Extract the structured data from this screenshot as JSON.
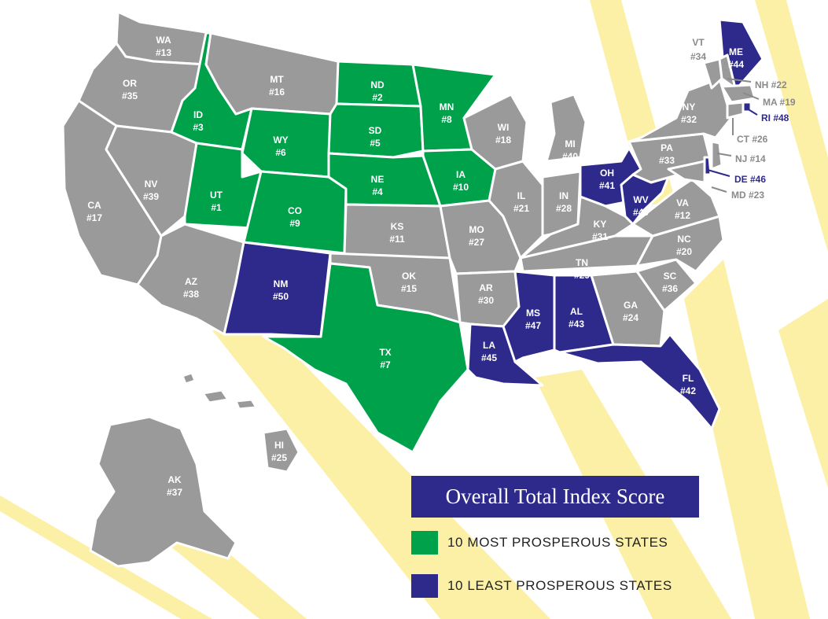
{
  "legend": {
    "title": "Overall Total Index Score",
    "items": [
      {
        "label": "10 MOST PROSPEROUS STATES",
        "color": "#00a14b"
      },
      {
        "label": "10 LEAST PROSPEROUS STATES",
        "color": "#2e2a8c"
      }
    ]
  },
  "colors": {
    "gray": "#9a9a9a",
    "green": "#00a14b",
    "blue": "#2e2a8c",
    "rays": "#fbf0a5"
  },
  "states": [
    {
      "abbr": "WA",
      "rank": "#13",
      "group": "gray"
    },
    {
      "abbr": "OR",
      "rank": "#35",
      "group": "gray"
    },
    {
      "abbr": "CA",
      "rank": "#17",
      "group": "gray"
    },
    {
      "abbr": "NV",
      "rank": "#39",
      "group": "gray"
    },
    {
      "abbr": "ID",
      "rank": "#3",
      "group": "green"
    },
    {
      "abbr": "MT",
      "rank": "#16",
      "group": "gray"
    },
    {
      "abbr": "WY",
      "rank": "#6",
      "group": "green"
    },
    {
      "abbr": "UT",
      "rank": "#1",
      "group": "green"
    },
    {
      "abbr": "CO",
      "rank": "#9",
      "group": "green"
    },
    {
      "abbr": "AZ",
      "rank": "#38",
      "group": "gray"
    },
    {
      "abbr": "NM",
      "rank": "#50",
      "group": "blue"
    },
    {
      "abbr": "ND",
      "rank": "#2",
      "group": "green"
    },
    {
      "abbr": "SD",
      "rank": "#5",
      "group": "green"
    },
    {
      "abbr": "NE",
      "rank": "#4",
      "group": "green"
    },
    {
      "abbr": "KS",
      "rank": "#11",
      "group": "gray"
    },
    {
      "abbr": "OK",
      "rank": "#15",
      "group": "gray"
    },
    {
      "abbr": "TX",
      "rank": "#7",
      "group": "green"
    },
    {
      "abbr": "MN",
      "rank": "#8",
      "group": "green"
    },
    {
      "abbr": "IA",
      "rank": "#10",
      "group": "green"
    },
    {
      "abbr": "MO",
      "rank": "#27",
      "group": "gray"
    },
    {
      "abbr": "AR",
      "rank": "#30",
      "group": "gray"
    },
    {
      "abbr": "LA",
      "rank": "#45",
      "group": "blue"
    },
    {
      "abbr": "WI",
      "rank": "#18",
      "group": "gray"
    },
    {
      "abbr": "IL",
      "rank": "#21",
      "group": "gray"
    },
    {
      "abbr": "MI",
      "rank": "#40",
      "group": "gray"
    },
    {
      "abbr": "IN",
      "rank": "#28",
      "group": "gray"
    },
    {
      "abbr": "OH",
      "rank": "#41",
      "group": "blue"
    },
    {
      "abbr": "KY",
      "rank": "#31",
      "group": "gray"
    },
    {
      "abbr": "TN",
      "rank": "#29",
      "group": "gray"
    },
    {
      "abbr": "MS",
      "rank": "#47",
      "group": "blue"
    },
    {
      "abbr": "AL",
      "rank": "#43",
      "group": "blue"
    },
    {
      "abbr": "GA",
      "rank": "#24",
      "group": "gray"
    },
    {
      "abbr": "FL",
      "rank": "#42",
      "group": "blue"
    },
    {
      "abbr": "SC",
      "rank": "#36",
      "group": "gray"
    },
    {
      "abbr": "NC",
      "rank": "#20",
      "group": "gray"
    },
    {
      "abbr": "VA",
      "rank": "#12",
      "group": "gray"
    },
    {
      "abbr": "WV",
      "rank": "#49",
      "group": "blue"
    },
    {
      "abbr": "PA",
      "rank": "#33",
      "group": "gray"
    },
    {
      "abbr": "NY",
      "rank": "#32",
      "group": "gray"
    },
    {
      "abbr": "ME",
      "rank": "#44",
      "group": "blue"
    },
    {
      "abbr": "VT",
      "rank": "#34",
      "group": "gray"
    },
    {
      "abbr": "NH",
      "rank": "#22",
      "group": "gray"
    },
    {
      "abbr": "MA",
      "rank": "#19",
      "group": "gray"
    },
    {
      "abbr": "RI",
      "rank": "#48",
      "group": "blue"
    },
    {
      "abbr": "CT",
      "rank": "#26",
      "group": "gray"
    },
    {
      "abbr": "NJ",
      "rank": "#14",
      "group": "gray"
    },
    {
      "abbr": "DE",
      "rank": "#46",
      "group": "blue"
    },
    {
      "abbr": "MD",
      "rank": "#23",
      "group": "gray"
    },
    {
      "abbr": "AK",
      "rank": "#37",
      "group": "gray"
    },
    {
      "abbr": "HI",
      "rank": "#25",
      "group": "gray"
    }
  ]
}
